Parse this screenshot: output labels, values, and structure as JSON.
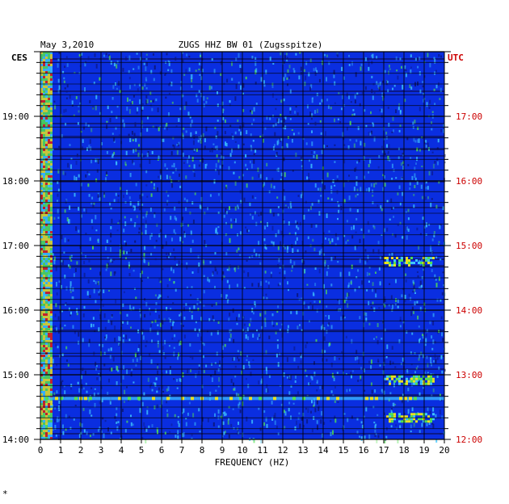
{
  "chart_data": {
    "type": "heatmap",
    "date": "May 3,2010",
    "title": "ZUGS HHZ BW 01 (Zugsspitze)",
    "left_axis_label": "CES",
    "right_axis_label": "UTC",
    "xlabel": "FREQUENCY (HZ)",
    "x_ticks": [
      "0",
      "1",
      "2",
      "3",
      "4",
      "5",
      "6",
      "7",
      "8",
      "9",
      "10",
      "11",
      "12",
      "13",
      "14",
      "15",
      "16",
      "17",
      "18",
      "19",
      "20"
    ],
    "xlim": [
      0,
      20
    ],
    "left_ticks": [
      "19:00",
      "18:00",
      "17:00",
      "16:00",
      "15:00",
      "14:00"
    ],
    "right_ticks": [
      "17:00",
      "16:00",
      "15:00",
      "14:00",
      "13:00",
      "12:00"
    ],
    "time_range_local": [
      "14:00",
      "20:00"
    ],
    "colors": {
      "background_field": "#0a2ee0",
      "dark": "#0b1470",
      "cyan": "#3ec6ff",
      "green": "#52e050",
      "yellow": "#e8e020",
      "red": "#e02010",
      "utc_label": "#cc0000",
      "grid": "#000000"
    },
    "features": [
      {
        "freq_range": [
          0,
          0.6
        ],
        "intensity": "high",
        "note": "low-frequency band"
      },
      {
        "freq_range": [
          17,
          19.5
        ],
        "time_local": "16:45",
        "intensity": "medium"
      },
      {
        "freq_range": [
          17,
          19.5
        ],
        "time_local": "14:55",
        "intensity": "medium"
      },
      {
        "freq_range": [
          0,
          20
        ],
        "time_local": "14:38",
        "intensity": "medium"
      },
      {
        "freq_range": [
          17,
          19.5
        ],
        "time_local": "14:20",
        "intensity": "medium"
      }
    ],
    "footnote": "*"
  }
}
